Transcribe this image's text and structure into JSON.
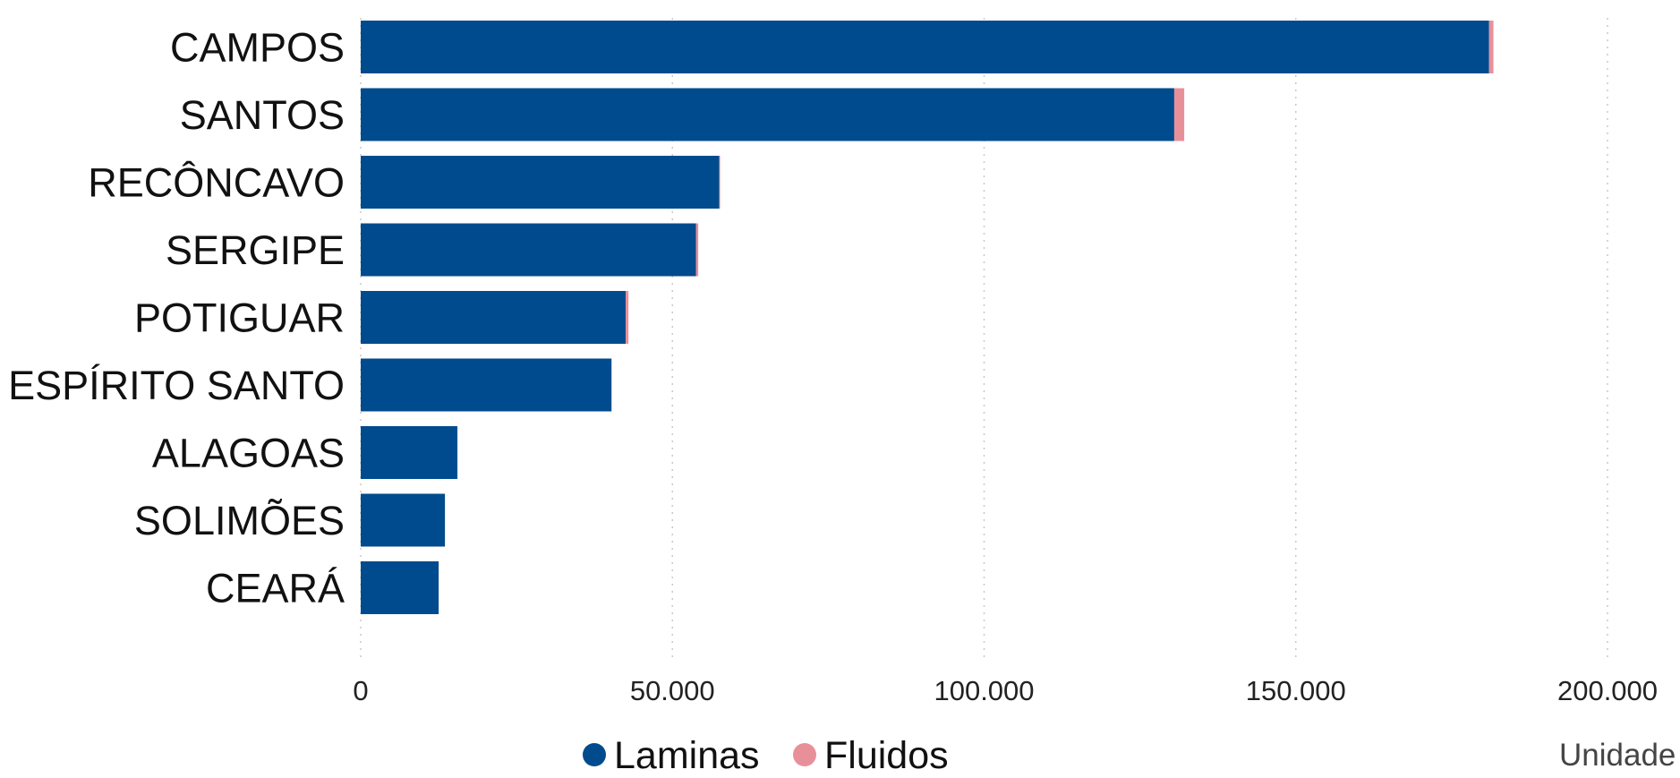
{
  "chart_data": {
    "type": "bar",
    "orientation": "horizontal",
    "stacked": true,
    "categories": [
      "CAMPOS",
      "SANTOS",
      "RECÔNCAVO",
      "SERGIPE",
      "POTIGUAR",
      "ESPÍRITO SANTO",
      "ALAGOAS",
      "SOLIMÕES",
      "CEARÁ"
    ],
    "series": [
      {
        "name": "Laminas",
        "color": "#004b8d",
        "values": [
          181000,
          130500,
          57500,
          53800,
          42500,
          40200,
          15500,
          13500,
          12500
        ]
      },
      {
        "name": "Fluidos",
        "color": "#e8909a",
        "values": [
          700,
          1600,
          150,
          350,
          450,
          80,
          40,
          30,
          20
        ]
      }
    ],
    "xlim": [
      0,
      200000
    ],
    "xticks": [
      0,
      50000,
      100000,
      150000,
      200000
    ],
    "xtick_labels": [
      "0",
      "50.000",
      "100.000",
      "150.000",
      "200.000"
    ],
    "unit_label": "Unidade",
    "grid": "vertical dotted",
    "legend_position": "bottom"
  }
}
